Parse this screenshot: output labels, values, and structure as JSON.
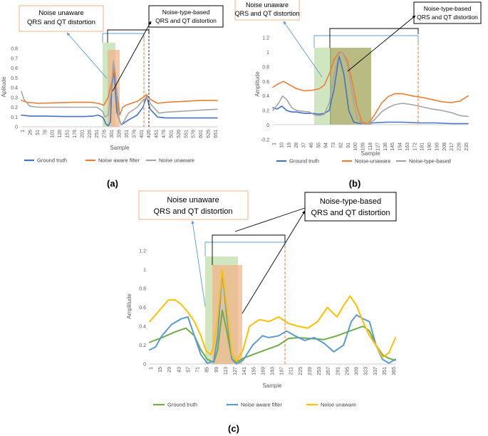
{
  "chart_data": [
    {
      "type": "line",
      "panel_label": "(a)",
      "xlabel": "Sample",
      "ylabel": "Aplitude",
      "ylim": [
        0,
        0.8
      ],
      "yticks": [
        "0",
        "0.1",
        "0.2",
        "0.3",
        "0.4",
        "0.5",
        "0.6",
        "0.7",
        "0.8"
      ],
      "xticks": [
        "1",
        "26",
        "51",
        "76",
        "101",
        "126",
        "151",
        "176",
        "201",
        "226",
        "251",
        "276",
        "301",
        "326",
        "351",
        "376",
        "401",
        "426",
        "451",
        "476",
        "501",
        "526",
        "551",
        "576",
        "601",
        "626",
        "651"
      ],
      "xlim": [
        1,
        676
      ],
      "annotation_left": [
        "Noise unaware",
        "QRS and QT distortion"
      ],
      "annotation_right": [
        "Noise-type-based",
        "QRS and QT distortion"
      ],
      "series": [
        {
          "name": "Ground truth",
          "color": "#4472C4",
          "x": [
            1,
            30,
            80,
            150,
            220,
            250,
            265,
            280,
            285,
            292,
            300,
            308,
            312,
            320,
            330,
            345,
            370,
            400,
            420,
            432,
            445,
            470,
            500,
            560,
            620,
            676
          ],
          "y": [
            0.12,
            0.11,
            0.11,
            0.105,
            0.105,
            0.11,
            0.12,
            0.1,
            0.08,
            0.03,
            0.01,
            0.05,
            0.4,
            0.58,
            0.15,
            0.02,
            0.07,
            0.12,
            0.2,
            0.31,
            0.18,
            0.1,
            0.09,
            0.09,
            0.09,
            0.09
          ]
        },
        {
          "name": "Noise aware filter",
          "color": "#ED7D31",
          "x": [
            1,
            20,
            60,
            120,
            180,
            240,
            265,
            285,
            300,
            315,
            320,
            330,
            340,
            350,
            360,
            380,
            400,
            420,
            432,
            445,
            470,
            500,
            560,
            620,
            676
          ],
          "y": [
            0.27,
            0.25,
            0.24,
            0.245,
            0.25,
            0.25,
            0.24,
            0.22,
            0.3,
            0.5,
            0.6,
            0.35,
            0.12,
            0.2,
            0.22,
            0.24,
            0.26,
            0.3,
            0.33,
            0.28,
            0.24,
            0.25,
            0.26,
            0.27,
            0.27
          ]
        },
        {
          "name": "Noise unaware",
          "color": "#A5A5A5",
          "x": [
            1,
            10,
            30,
            60,
            120,
            180,
            240,
            262,
            280,
            290,
            300,
            310,
            318,
            325,
            335,
            345,
            355,
            370,
            400,
            420,
            432,
            450,
            475,
            500,
            560,
            620,
            676
          ],
          "y": [
            0.36,
            0.28,
            0.21,
            0.2,
            0.2,
            0.2,
            0.2,
            0.2,
            0.16,
            0.1,
            0.12,
            0.35,
            0.67,
            0.55,
            0.1,
            0.02,
            0.06,
            0.14,
            0.2,
            0.27,
            0.3,
            0.22,
            0.14,
            0.15,
            0.16,
            0.17,
            0.18
          ]
        }
      ]
    },
    {
      "type": "line",
      "panel_label": "(b)",
      "xlabel": "Sample",
      "ylabel": "Amplitude",
      "ylim": [
        -0.2,
        1.2
      ],
      "yticks": [
        "-0.2",
        "0",
        "0.2",
        "0.4",
        "0.6",
        "0.8",
        "1",
        "1.2"
      ],
      "xticks": [
        "1",
        "10",
        "19",
        "28",
        "37",
        "46",
        "55",
        "64",
        "73",
        "82",
        "91",
        "100",
        "109",
        "118",
        "127",
        "136",
        "145",
        "154",
        "163",
        "172",
        "181",
        "190",
        "199",
        "208",
        "217",
        "226",
        "235"
      ],
      "xlim": [
        1,
        240
      ],
      "annotation_left": [
        "Noise unaware",
        "QRS and QT distortion"
      ],
      "annotation_right": [
        "Noise-type-based",
        "QRS and QT distortion"
      ],
      "series": [
        {
          "name": "Ground truth",
          "color": "#4472C4",
          "x": [
            1,
            6,
            12,
            18,
            24,
            30,
            40,
            50,
            58,
            64,
            70,
            76,
            82,
            88,
            94,
            100,
            108,
            116,
            124,
            140,
            160,
            180,
            200,
            220,
            240
          ],
          "y": [
            0.24,
            0.22,
            0.26,
            0.2,
            0.18,
            0.18,
            0.16,
            0.16,
            0.15,
            0.16,
            0.2,
            0.5,
            0.95,
            0.7,
            0.2,
            0.04,
            0.02,
            0.02,
            0.03,
            0.04,
            0.04,
            0.03,
            0.03,
            0.02,
            0.02
          ]
        },
        {
          "name": "Noise-unaware",
          "color": "#ED7D31",
          "x": [
            1,
            8,
            14,
            22,
            30,
            40,
            50,
            58,
            64,
            70,
            76,
            82,
            86,
            92,
            98,
            104,
            110,
            118,
            126,
            134,
            142,
            150,
            160,
            172,
            184,
            196,
            208,
            220,
            230,
            240
          ],
          "y": [
            0.52,
            0.57,
            0.6,
            0.55,
            0.5,
            0.47,
            0.48,
            0.5,
            0.55,
            0.7,
            0.9,
            1.0,
            1.0,
            0.9,
            0.6,
            0.25,
            0.04,
            0.02,
            0.15,
            0.3,
            0.39,
            0.43,
            0.43,
            0.4,
            0.38,
            0.35,
            0.32,
            0.31,
            0.33,
            0.4
          ]
        },
        {
          "name": "Noise-type-based",
          "color": "#A5A5A5",
          "x": [
            1,
            8,
            13,
            18,
            24,
            30,
            38,
            46,
            52,
            58,
            64,
            70,
            76,
            82,
            86,
            92,
            98,
            104,
            110,
            118,
            126,
            134,
            142,
            150,
            160,
            172,
            184,
            196,
            208,
            220,
            230,
            240
          ],
          "y": [
            0.2,
            0.3,
            0.4,
            0.35,
            0.24,
            0.2,
            0.19,
            0.18,
            0.14,
            0.13,
            0.15,
            0.3,
            0.7,
            0.98,
            1.0,
            0.85,
            0.45,
            0.1,
            0.02,
            0.01,
            0.08,
            0.18,
            0.24,
            0.28,
            0.3,
            0.28,
            0.25,
            0.22,
            0.2,
            0.17,
            0.13,
            0.12
          ]
        }
      ]
    },
    {
      "type": "line",
      "panel_label": "(c)",
      "xlabel": "Sample",
      "ylabel": "Amplitude",
      "ylim": [
        0,
        1.2
      ],
      "yticks": [
        "0",
        "0.2",
        "0.4",
        "0.6",
        "0.8",
        "1",
        "1.2"
      ],
      "xticks": [
        "1",
        "15",
        "29",
        "43",
        "57",
        "71",
        "85",
        "99",
        "113",
        "127",
        "141",
        "155",
        "169",
        "183",
        "197",
        "211",
        "225",
        "239",
        "253",
        "267",
        "281",
        "295",
        "309",
        "323",
        "337",
        "351",
        "365"
      ],
      "xlim": [
        1,
        380
      ],
      "annotation_left": [
        "Noise unaware",
        "QRS and QT distortion"
      ],
      "annotation_right": [
        "Noise-type-based",
        "QRS and QT distortion"
      ],
      "series": [
        {
          "name": "Ground truth",
          "color": "#70AD47",
          "x": [
            1,
            20,
            40,
            57,
            70,
            80,
            90,
            100,
            106,
            113,
            120,
            128,
            135,
            145,
            160,
            180,
            200,
            215,
            230,
            250,
            270,
            290,
            310,
            330,
            340,
            350,
            360,
            370,
            380
          ],
          "y": [
            0.23,
            0.28,
            0.34,
            0.38,
            0.3,
            0.15,
            0.05,
            0.02,
            0.15,
            0.57,
            0.35,
            0.05,
            0.02,
            0.06,
            0.1,
            0.15,
            0.2,
            0.27,
            0.28,
            0.27,
            0.26,
            0.3,
            0.35,
            0.4,
            0.35,
            0.2,
            0.1,
            0.06,
            0.04
          ]
        },
        {
          "name": "Noise aware filter",
          "color": "#5B9BD5",
          "x": [
            1,
            10,
            20,
            35,
            50,
            60,
            70,
            80,
            90,
            100,
            106,
            113,
            120,
            128,
            135,
            145,
            160,
            175,
            185,
            200,
            212,
            225,
            240,
            255,
            270,
            285,
            300,
            312,
            320,
            330,
            340,
            350,
            360,
            370,
            380
          ],
          "y": [
            0.15,
            0.18,
            0.3,
            0.42,
            0.48,
            0.5,
            0.3,
            0.1,
            0.01,
            0.03,
            0.3,
            0.99,
            0.5,
            0.05,
            0.0,
            0.04,
            0.2,
            0.3,
            0.28,
            0.3,
            0.35,
            0.3,
            0.25,
            0.28,
            0.22,
            0.13,
            0.2,
            0.45,
            0.52,
            0.48,
            0.45,
            0.2,
            0.05,
            0.01,
            0.05
          ]
        },
        {
          "name": "Noise unaware",
          "color": "#FFC000",
          "x": [
            1,
            10,
            20,
            30,
            40,
            50,
            60,
            70,
            80,
            88,
            95,
            100,
            106,
            113,
            120,
            128,
            135,
            145,
            155,
            170,
            185,
            200,
            215,
            230,
            245,
            260,
            275,
            290,
            300,
            310,
            320,
            330,
            340,
            350,
            360,
            370,
            380
          ],
          "y": [
            0.45,
            0.52,
            0.6,
            0.68,
            0.68,
            0.63,
            0.55,
            0.45,
            0.3,
            0.14,
            0.1,
            0.2,
            0.5,
            1.0,
            0.6,
            0.1,
            0.03,
            0.15,
            0.4,
            0.47,
            0.45,
            0.5,
            0.43,
            0.4,
            0.38,
            0.45,
            0.6,
            0.5,
            0.62,
            0.72,
            0.62,
            0.45,
            0.3,
            0.2,
            0.07,
            0.12,
            0.28
          ]
        }
      ]
    }
  ]
}
